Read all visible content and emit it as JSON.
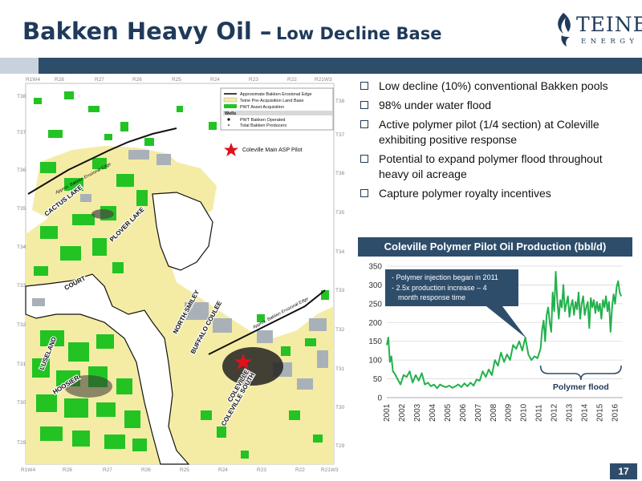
{
  "title": {
    "main": "Bakken Heavy Oil –",
    "sub": "Low Decline Base"
  },
  "logo": {
    "word": "TEINE",
    "energy": "ENERGY"
  },
  "map": {
    "ranges_top": [
      "R1W4",
      "R28",
      "R27",
      "R26",
      "R25",
      "R24",
      "R23",
      "R22",
      "R21W3"
    ],
    "ranges_bottom": [
      "R1W4",
      "R28",
      "R27",
      "R26",
      "R25",
      "R24",
      "R23",
      "R22",
      "R21W3"
    ],
    "townships_left": [
      "T38",
      "T37",
      "T36",
      "T35",
      "T34",
      "T33",
      "T32",
      "T31",
      "T30",
      "T29"
    ],
    "townships_right": [
      "T38",
      "T37",
      "T36",
      "T35",
      "T34",
      "T33",
      "T32",
      "T31",
      "T30",
      "T29"
    ],
    "legend": {
      "line1": "Approximate Bakken Erosional Edge",
      "line2": "Teine Pre-Acquisition Land Base",
      "line3": "PWT Asset Acquisition",
      "wells": "Wells",
      "well1": "PWT Bakken Operated",
      "well2": "Total Bakken Producers"
    },
    "pilot_label": "Coleville Main ASP Pilot",
    "edge_label_1": "Approx. Bakken Erosional Edge",
    "edge_label_2": "Approx. Bakken Erosional Edge",
    "place_labels": [
      "CACTUS LAKE",
      "PLOVER LAKE",
      "COURT",
      "NORTH SMILEY",
      "BUFFALO COULEE",
      "LUSELAND",
      "HOOSIER",
      "COLEVILLE",
      "COLEVILLE SOUTH"
    ],
    "colors": {
      "land": "#f4eca4",
      "acq": "#22c323",
      "gray": "#a9b1b8",
      "edge": "#111111",
      "star": "#e0101a"
    }
  },
  "bullets": [
    "Low decline (10%) conventional Bakken pools",
    "98% under water flood",
    "Active polymer pilot (1/4 section) at Coleville exhibiting positive response",
    "Potential to expand polymer flood throughout heavy oil acreage",
    "Capture polymer royalty incentives"
  ],
  "chart_header": "Coleville Polymer Pilot Oil Production (bbl/d)",
  "chart_data": {
    "type": "line",
    "title": "Coleville Polymer Pilot Oil Production (bbl/d)",
    "x_ticks": [
      "2001",
      "2002",
      "2003",
      "2004",
      "2005",
      "2006",
      "2007",
      "2008",
      "2009",
      "2010",
      "2011",
      "2012",
      "2013",
      "2014",
      "2015",
      "2016"
    ],
    "ylim": [
      0,
      350
    ],
    "y_ticks": [
      0,
      50,
      100,
      150,
      200,
      250,
      300,
      350
    ],
    "grid": true,
    "line_color": "#22b14c",
    "series": [
      {
        "x": [
          2001.0,
          2001.1,
          2001.2,
          2001.3,
          2001.4,
          2001.5,
          2001.7,
          2001.9,
          2002.1,
          2002.3,
          2002.5,
          2002.7,
          2002.9,
          2003.1,
          2003.3,
          2003.5,
          2003.7,
          2003.9,
          2004.1,
          2004.3,
          2004.5,
          2004.7,
          2004.9,
          2005.1,
          2005.3,
          2005.5,
          2005.7,
          2005.9,
          2006.1,
          2006.3,
          2006.5,
          2006.7,
          2006.9,
          2007.1,
          2007.3,
          2007.5,
          2007.7,
          2007.9,
          2008.1,
          2008.3,
          2008.5,
          2008.7,
          2008.9,
          2009.1,
          2009.3,
          2009.5,
          2009.7,
          2009.9,
          2010.1,
          2010.3,
          2010.5,
          2010.7,
          2010.9,
          2011.1,
          2011.2,
          2011.3,
          2011.4,
          2011.5,
          2011.6,
          2011.7,
          2011.8,
          2011.9,
          2012.0,
          2012.1,
          2012.2,
          2012.3,
          2012.4,
          2012.5,
          2012.6,
          2012.7,
          2012.8,
          2012.9,
          2013.0,
          2013.1,
          2013.2,
          2013.3,
          2013.4,
          2013.5,
          2013.6,
          2013.7,
          2013.8,
          2013.9,
          2014.0,
          2014.1,
          2014.2,
          2014.3,
          2014.4,
          2014.5,
          2014.6,
          2014.7,
          2014.8,
          2014.9,
          2015.0,
          2015.1,
          2015.2,
          2015.3,
          2015.4,
          2015.5,
          2015.6,
          2015.7,
          2015.8,
          2015.9,
          2016.0,
          2016.1,
          2016.2,
          2016.3,
          2016.4
        ],
        "y": [
          140,
          160,
          95,
          110,
          70,
          65,
          50,
          35,
          60,
          55,
          70,
          40,
          60,
          45,
          65,
          35,
          40,
          30,
          35,
          25,
          35,
          30,
          28,
          32,
          26,
          30,
          35,
          28,
          38,
          30,
          40,
          32,
          48,
          45,
          70,
          55,
          75,
          60,
          100,
          85,
          120,
          95,
          115,
          100,
          140,
          130,
          150,
          125,
          160,
          115,
          100,
          110,
          105,
          130,
          180,
          205,
          150,
          220,
          240,
          200,
          175,
          280,
          230,
          335,
          260,
          210,
          260,
          240,
          300,
          230,
          250,
          270,
          215,
          245,
          260,
          220,
          255,
          235,
          280,
          210,
          250,
          270,
          220,
          240,
          255,
          185,
          265,
          240,
          260,
          225,
          255,
          230,
          250,
          210,
          260,
          240,
          270,
          230,
          255,
          175,
          240,
          275,
          250,
          295,
          310,
          280,
          270
        ]
      }
    ],
    "annotations": {
      "callout_1": "- Polymer injection began in 2011",
      "callout_2a": "- 2.5x production increase – 4",
      "callout_2b": "month response time",
      "brace_label": "Polymer flood"
    }
  },
  "page_number": "17"
}
